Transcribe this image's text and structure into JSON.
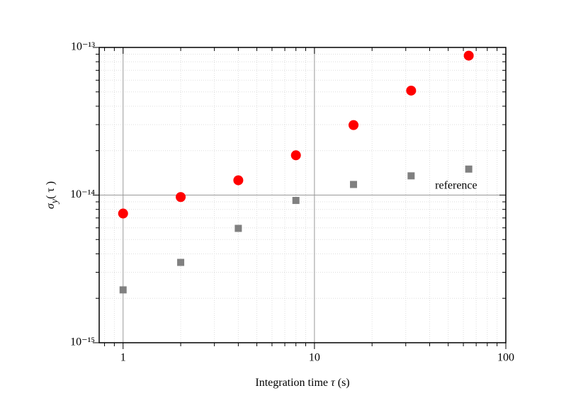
{
  "chart_data": {
    "type": "scatter",
    "log_x": true,
    "log_y": true,
    "grid": true,
    "minor_ticks": true,
    "xlabel": {
      "text": "Integration time ",
      "symbol": "τ",
      "unit": " (s)"
    },
    "ylabel": {
      "symbol": "σ",
      "subscript": "y",
      "rest": "( τ )"
    },
    "xlim": [
      0.75,
      100
    ],
    "ylim": [
      1e-15,
      1e-13
    ],
    "xticks": [
      1,
      10,
      100
    ],
    "yticks": [
      {
        "value": 1e-15,
        "label": "10⁻¹⁵"
      },
      {
        "value": 1e-14,
        "label": "10⁻¹⁴"
      },
      {
        "value": 1e-13,
        "label": "10⁻¹³"
      }
    ],
    "x": [
      1,
      2,
      4,
      8,
      16,
      32,
      64
    ],
    "series": [
      {
        "marker": "circle",
        "color": "#ff0000",
        "values": [
          7.5e-15,
          9.7e-15,
          1.26e-14,
          1.86e-14,
          2.98e-14,
          5.1e-14,
          8.8e-14
        ]
      },
      {
        "marker": "square",
        "color": "#808080",
        "values": [
          2.28e-15,
          3.5e-15,
          5.95e-15,
          9.2e-15,
          1.18e-14,
          1.35e-14,
          1.5e-14
        ]
      }
    ],
    "annotations": [
      {
        "text": "reference",
        "x": 64,
        "y": 1.15e-14,
        "color": "#808080"
      }
    ]
  }
}
